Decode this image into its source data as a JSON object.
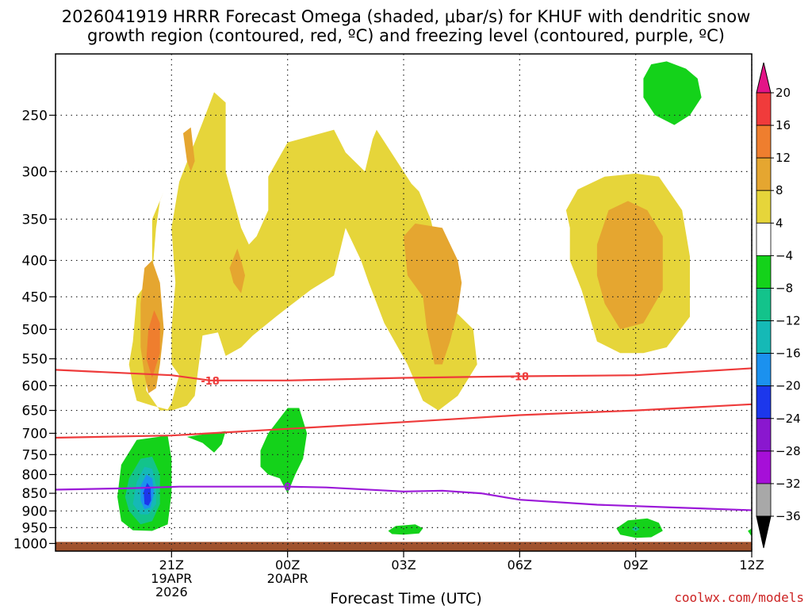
{
  "title_line1": "2026041919 HRRR Forecast Omega (shaded, μbar/s) for KHUF with dendritic snow",
  "title_line2": "growth region (contoured, red, ºC) and freezing level (contoured, purple, ºC)",
  "credit": "coolwx.com/models",
  "chart_data": {
    "type": "heatmap",
    "xlabel": "Forecast Time (UTC)",
    "ylabel": "",
    "x_range_hours": [
      -1.0,
      17.0
    ],
    "y_range_hpa": [
      1025,
      205
    ],
    "y_scale": "log",
    "grid": true,
    "y_ticks": [
      250,
      300,
      350,
      400,
      450,
      500,
      550,
      600,
      650,
      700,
      750,
      800,
      850,
      900,
      950,
      1000
    ],
    "x_ticks": [
      {
        "hour": 2,
        "label": "21Z",
        "sub1": "19APR",
        "sub2": "2026"
      },
      {
        "hour": 5,
        "label": "00Z",
        "sub1": "20APR",
        "sub2": ""
      },
      {
        "hour": 8,
        "label": "03Z",
        "sub1": "",
        "sub2": ""
      },
      {
        "hour": 11,
        "label": "06Z",
        "sub1": "",
        "sub2": ""
      },
      {
        "hour": 14,
        "label": "09Z",
        "sub1": "",
        "sub2": ""
      },
      {
        "hour": 17,
        "label": "12Z",
        "sub1": "",
        "sub2": ""
      }
    ],
    "colorbar": {
      "labels": [
        "20",
        "16",
        "12",
        "8",
        "4",
        "-4",
        "-8",
        "-12",
        "-16",
        "-20",
        "-24",
        "-28",
        "-32",
        "-36"
      ],
      "colors": [
        "#f03b3b",
        "#ef7e2e",
        "#e5a630",
        "#e6d53a",
        "#ffffff",
        "#14d21a",
        "#13c38b",
        "#15b9b6",
        "#1b91ef",
        "#1c37ec",
        "#8a17cf",
        "#a60fd8",
        "#a8a8a8"
      ],
      "top_arrow_color": "#e31487",
      "bottom_arrow_color": "#000000"
    },
    "contours_red": [
      {
        "label": "-18",
        "label_positions_hour": [
          3.0,
          11.0
        ],
        "points": [
          [
            -1.0,
            570
          ],
          [
            0.5,
            575
          ],
          [
            2.0,
            580
          ],
          [
            3.0,
            590
          ],
          [
            5.0,
            590
          ],
          [
            8.0,
            585
          ],
          [
            11.0,
            582
          ],
          [
            14.0,
            580
          ],
          [
            17.5,
            565
          ]
        ]
      },
      {
        "label": "",
        "points": [
          [
            -1.0,
            710
          ],
          [
            2.0,
            705
          ],
          [
            5.0,
            690
          ],
          [
            8.0,
            675
          ],
          [
            11.0,
            660
          ],
          [
            14.0,
            650
          ],
          [
            17.5,
            635
          ]
        ]
      }
    ],
    "contours_purple": [
      {
        "label": "0",
        "label_positions_hour": [
          5.0
        ],
        "points": [
          [
            -1.0,
            840
          ],
          [
            1.0,
            836
          ],
          [
            2.2,
            832
          ],
          [
            5.0,
            832
          ],
          [
            6.0,
            834
          ],
          [
            8.0,
            845
          ],
          [
            9.0,
            843
          ],
          [
            10.0,
            850
          ],
          [
            11.0,
            868
          ],
          [
            13.0,
            882
          ],
          [
            15.0,
            890
          ],
          [
            17.5,
            900
          ]
        ]
      }
    ],
    "terrain_color": "#a0522d",
    "omega_regions": [
      {
        "value": 4,
        "color": "#e6d53a",
        "points": [
          [
            1.5,
            640
          ],
          [
            1.9,
            648
          ],
          [
            2.0,
            635
          ],
          [
            2.1,
            605
          ],
          [
            2.2,
            580
          ],
          [
            2.0,
            560
          ],
          [
            2.0,
            500
          ],
          [
            2.1,
            430
          ],
          [
            2.0,
            360
          ],
          [
            2.2,
            310
          ],
          [
            2.8,
            256
          ],
          [
            3.1,
            232
          ],
          [
            3.4,
            240
          ],
          [
            3.4,
            300
          ],
          [
            3.8,
            360
          ],
          [
            4.0,
            380
          ],
          [
            4.2,
            370
          ],
          [
            4.5,
            340
          ],
          [
            4.5,
            305
          ],
          [
            5.0,
            273
          ],
          [
            6.2,
            262
          ],
          [
            6.5,
            282
          ],
          [
            7.0,
            300
          ],
          [
            7.2,
            270
          ],
          [
            7.3,
            262
          ],
          [
            8.2,
            312
          ],
          [
            8.4,
            320
          ],
          [
            8.7,
            350
          ],
          [
            8.9,
            390
          ],
          [
            9.3,
            470
          ],
          [
            9.8,
            500
          ],
          [
            9.9,
            560
          ],
          [
            9.4,
            620
          ],
          [
            8.9,
            650
          ],
          [
            8.5,
            630
          ],
          [
            8.1,
            560
          ],
          [
            7.5,
            490
          ],
          [
            7.1,
            430
          ],
          [
            6.9,
            400
          ],
          [
            6.5,
            360
          ],
          [
            6.2,
            420
          ],
          [
            5.6,
            440
          ],
          [
            5.0,
            466
          ],
          [
            4.7,
            480
          ],
          [
            4.1,
            510
          ],
          [
            3.8,
            530
          ],
          [
            3.4,
            545
          ],
          [
            3.2,
            505
          ],
          [
            2.8,
            510
          ],
          [
            2.6,
            620
          ],
          [
            2.4,
            640
          ],
          [
            2.0,
            650
          ],
          [
            1.7,
            650
          ],
          [
            1.35,
            610
          ],
          [
            1.3,
            470
          ],
          [
            1.5,
            420
          ],
          [
            1.6,
            360
          ],
          [
            1.7,
            330
          ],
          [
            1.8,
            320
          ],
          [
            1.5,
            350
          ],
          [
            1.5,
            420
          ],
          [
            1.1,
            450
          ],
          [
            1.0,
            520
          ],
          [
            0.9,
            560
          ],
          [
            1.0,
            600
          ],
          [
            1.1,
            630
          ]
        ]
      },
      {
        "value": 8,
        "color": "#e5a630",
        "points": [
          [
            2.4,
            290
          ],
          [
            2.3,
            265
          ],
          [
            2.5,
            260
          ],
          [
            2.6,
            290
          ],
          [
            2.5,
            300
          ]
        ]
      },
      {
        "value": 8,
        "color": "#e5a630",
        "points": [
          [
            3.5,
            410
          ],
          [
            3.7,
            385
          ],
          [
            3.8,
            400
          ],
          [
            3.9,
            420
          ],
          [
            3.8,
            445
          ],
          [
            3.6,
            430
          ]
        ]
      },
      {
        "value": 8,
        "color": "#e5a630",
        "points": [
          [
            1.4,
            615
          ],
          [
            1.6,
            605
          ],
          [
            1.7,
            560
          ],
          [
            1.8,
            500
          ],
          [
            1.7,
            430
          ],
          [
            1.5,
            400
          ],
          [
            1.3,
            410
          ],
          [
            1.2,
            460
          ],
          [
            1.2,
            530
          ],
          [
            1.3,
            580
          ]
        ]
      },
      {
        "value": 12,
        "color": "#ef7e2e",
        "points": [
          [
            1.5,
            585
          ],
          [
            1.7,
            540
          ],
          [
            1.7,
            490
          ],
          [
            1.55,
            470
          ],
          [
            1.4,
            500
          ],
          [
            1.35,
            550
          ]
        ]
      },
      {
        "value": 8,
        "color": "#e5a630",
        "points": [
          [
            8.0,
            370
          ],
          [
            8.3,
            355
          ],
          [
            9.0,
            360
          ],
          [
            9.4,
            400
          ],
          [
            9.5,
            430
          ],
          [
            9.4,
            470
          ],
          [
            9.2,
            520
          ],
          [
            9.0,
            560
          ],
          [
            8.8,
            560
          ],
          [
            8.6,
            500
          ],
          [
            8.5,
            450
          ],
          [
            8.1,
            420
          ]
        ]
      },
      {
        "value": 4,
        "color": "#e6d53a",
        "points": [
          [
            12.2,
            340
          ],
          [
            12.5,
            318
          ],
          [
            13.2,
            305
          ],
          [
            14.0,
            302
          ],
          [
            14.6,
            305
          ],
          [
            15.2,
            340
          ],
          [
            15.4,
            395
          ],
          [
            15.4,
            480
          ],
          [
            14.8,
            530
          ],
          [
            14.2,
            540
          ],
          [
            13.6,
            540
          ],
          [
            13.0,
            520
          ],
          [
            12.6,
            440
          ],
          [
            12.3,
            400
          ],
          [
            12.3,
            360
          ]
        ]
      },
      {
        "value": 8,
        "color": "#e5a630",
        "points": [
          [
            13.0,
            380
          ],
          [
            13.3,
            340
          ],
          [
            13.8,
            330
          ],
          [
            14.3,
            340
          ],
          [
            14.7,
            370
          ],
          [
            14.7,
            440
          ],
          [
            14.2,
            490
          ],
          [
            13.6,
            500
          ],
          [
            13.2,
            460
          ],
          [
            13.0,
            420
          ]
        ]
      },
      {
        "value": -4,
        "color": "#14d21a",
        "points": [
          [
            14.2,
            222
          ],
          [
            14.4,
            212
          ],
          [
            14.8,
            210
          ],
          [
            15.3,
            215
          ],
          [
            15.6,
            222
          ],
          [
            15.7,
            236
          ],
          [
            15.4,
            250
          ],
          [
            15.0,
            258
          ],
          [
            14.5,
            250
          ],
          [
            14.2,
            236
          ]
        ]
      },
      {
        "value": -4,
        "color": "#14d21a",
        "points": [
          [
            0.7,
            775
          ],
          [
            1.1,
            715
          ],
          [
            1.9,
            705
          ],
          [
            2.0,
            760
          ],
          [
            2.0,
            850
          ],
          [
            1.9,
            940
          ],
          [
            1.5,
            960
          ],
          [
            1.0,
            958
          ],
          [
            0.7,
            930
          ],
          [
            0.6,
            860
          ]
        ]
      },
      {
        "value": -8,
        "color": "#13c38b",
        "points": [
          [
            0.9,
            810
          ],
          [
            1.2,
            760
          ],
          [
            1.5,
            755
          ],
          [
            1.7,
            800
          ],
          [
            1.7,
            880
          ],
          [
            1.5,
            930
          ],
          [
            1.2,
            940
          ],
          [
            0.9,
            900
          ],
          [
            0.8,
            860
          ]
        ]
      },
      {
        "value": -12,
        "color": "#15b9b6",
        "points": [
          [
            1.1,
            820
          ],
          [
            1.3,
            780
          ],
          [
            1.5,
            785
          ],
          [
            1.6,
            830
          ],
          [
            1.6,
            880
          ],
          [
            1.4,
            910
          ],
          [
            1.2,
            910
          ],
          [
            1.0,
            880
          ]
        ]
      },
      {
        "value": -16,
        "color": "#1b91ef",
        "points": [
          [
            1.2,
            830
          ],
          [
            1.35,
            800
          ],
          [
            1.5,
            810
          ],
          [
            1.55,
            850
          ],
          [
            1.45,
            890
          ],
          [
            1.3,
            895
          ],
          [
            1.2,
            870
          ]
        ]
      },
      {
        "value": -20,
        "color": "#1c37ec",
        "points": [
          [
            1.28,
            845
          ],
          [
            1.37,
            822
          ],
          [
            1.46,
            835
          ],
          [
            1.47,
            870
          ],
          [
            1.4,
            885
          ],
          [
            1.3,
            880
          ]
        ]
      },
      {
        "value": -4,
        "color": "#14d21a",
        "points": [
          [
            2.4,
            708
          ],
          [
            3.4,
            695
          ],
          [
            3.3,
            725
          ],
          [
            3.1,
            745
          ],
          [
            2.8,
            722
          ]
        ]
      },
      {
        "value": -4,
        "color": "#14d21a",
        "points": [
          [
            4.3,
            740
          ],
          [
            4.5,
            700
          ],
          [
            5.0,
            645
          ],
          [
            5.3,
            645
          ],
          [
            5.5,
            700
          ],
          [
            5.4,
            760
          ],
          [
            5.2,
            800
          ],
          [
            5.0,
            850
          ],
          [
            4.8,
            810
          ],
          [
            4.5,
            800
          ],
          [
            4.3,
            780
          ]
        ]
      },
      {
        "value": -4,
        "color": "#14d21a",
        "points": [
          [
            7.6,
            960
          ],
          [
            7.8,
            945
          ],
          [
            8.3,
            940
          ],
          [
            8.5,
            952
          ],
          [
            8.4,
            968
          ],
          [
            8.0,
            972
          ],
          [
            7.7,
            970
          ]
        ]
      },
      {
        "value": -4,
        "color": "#14d21a",
        "points": [
          [
            13.5,
            952
          ],
          [
            13.8,
            928
          ],
          [
            14.3,
            922
          ],
          [
            14.6,
            935
          ],
          [
            14.7,
            960
          ],
          [
            14.4,
            980
          ],
          [
            14.0,
            982
          ],
          [
            13.6,
            972
          ]
        ]
      },
      {
        "value": -8,
        "color": "#13c38b",
        "points": [
          [
            13.9,
            955
          ],
          [
            14.0,
            945
          ],
          [
            14.1,
            955
          ],
          [
            14.0,
            962
          ]
        ]
      },
      {
        "value": -4,
        "color": "#14d21a",
        "points": [
          [
            16.9,
            960
          ],
          [
            17.1,
            945
          ],
          [
            17.2,
            975
          ],
          [
            17.0,
            978
          ]
        ]
      }
    ]
  }
}
